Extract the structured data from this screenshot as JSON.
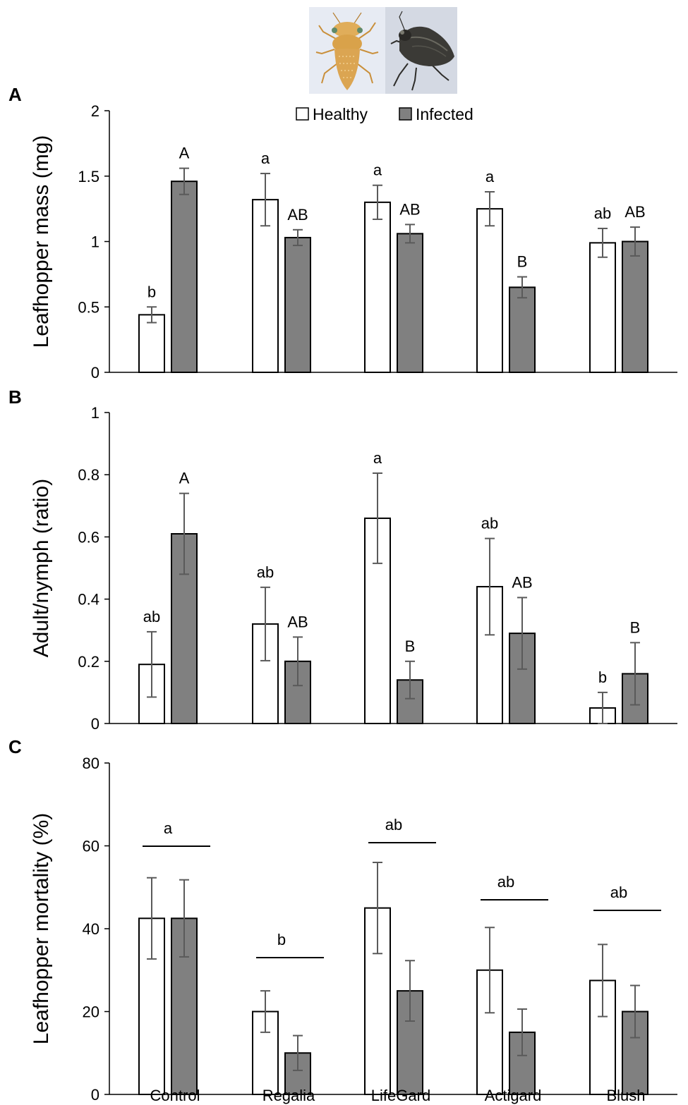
{
  "legend": {
    "healthy": "Healthy",
    "infected": "Infected"
  },
  "photos": {
    "left": "healthy-leafhopper-photo",
    "right": "infected-leafhopper-photo"
  },
  "colors": {
    "healthy_fill": "#ffffff",
    "infected_fill": "#808080",
    "bar_stroke": "#000000",
    "error_bar": "#5a5a5a",
    "axis": "#000000",
    "text": "#000000",
    "photo_bg_left": "#e7ebf3",
    "photo_bg_right": "#d4d9e3",
    "insect_healthy": "#d9a24a",
    "insect_infected": "#3b3a36"
  },
  "chart_data": [
    {
      "panel": "A",
      "type": "bar",
      "ylabel": "Leafhopper mass (mg)",
      "ylim": [
        0,
        2
      ],
      "yticks": [
        0,
        0.5,
        1,
        1.5,
        2
      ],
      "ytick_labels": [
        "0",
        "0.5",
        "1",
        "1.5",
        "2"
      ],
      "categories": [
        "Control",
        "Regalia",
        "LifeGard",
        "Actigard",
        "Blush"
      ],
      "series": [
        {
          "name": "Healthy",
          "values": [
            0.44,
            1.32,
            1.3,
            1.25,
            0.99
          ],
          "errors": [
            0.06,
            0.2,
            0.13,
            0.13,
            0.11
          ],
          "letters": [
            "b",
            "a",
            "a",
            "a",
            "ab"
          ]
        },
        {
          "name": "Infected",
          "values": [
            1.46,
            1.03,
            1.06,
            0.65,
            1.0
          ],
          "errors": [
            0.1,
            0.06,
            0.07,
            0.08,
            0.11
          ],
          "letters": [
            "A",
            "AB",
            "AB",
            "B",
            "AB"
          ]
        }
      ]
    },
    {
      "panel": "B",
      "type": "bar",
      "ylabel": "Adult/nymph (ratio)",
      "ylim": [
        0,
        1
      ],
      "yticks": [
        0,
        0.2,
        0.4,
        0.6,
        0.8,
        1
      ],
      "ytick_labels": [
        "0",
        "0.2",
        "0.4",
        "0.6",
        "0.8",
        "1"
      ],
      "categories": [
        "Control",
        "Regalia",
        "LifeGard",
        "Actigard",
        "Blush"
      ],
      "series": [
        {
          "name": "Healthy",
          "values": [
            0.19,
            0.32,
            0.66,
            0.44,
            0.05
          ],
          "errors": [
            0.105,
            0.118,
            0.145,
            0.155,
            0.05
          ],
          "letters": [
            "ab",
            "ab",
            "a",
            "ab",
            "b"
          ]
        },
        {
          "name": "Infected",
          "values": [
            0.61,
            0.2,
            0.14,
            0.29,
            0.16
          ],
          "errors": [
            0.13,
            0.078,
            0.06,
            0.115,
            0.1
          ],
          "letters": [
            "A",
            "AB",
            "B",
            "AB",
            "B"
          ]
        }
      ]
    },
    {
      "panel": "C",
      "type": "bar",
      "ylabel": "Leafhopper mortality (%)",
      "ylim": [
        0,
        80
      ],
      "yticks": [
        0,
        20,
        40,
        60,
        80
      ],
      "ytick_labels": [
        "0",
        "20",
        "40",
        "60",
        "80"
      ],
      "categories": [
        "Control",
        "Regalia",
        "LifeGard",
        "Actigard",
        "Blush"
      ],
      "series": [
        {
          "name": "Healthy",
          "values": [
            42.5,
            20,
            45,
            30,
            27.5
          ],
          "errors": [
            9.8,
            5,
            11,
            10.3,
            8.7
          ]
        },
        {
          "name": "Infected",
          "values": [
            42.5,
            10,
            25,
            15,
            20
          ],
          "errors": [
            9.3,
            4.2,
            7.3,
            5.6,
            6.3
          ]
        }
      ],
      "group_letters": [
        "a",
        "b",
        "ab",
        "ab",
        "ab"
      ],
      "xtick_labels": [
        "Control",
        "Regalia",
        "LifeGard",
        "Actigard",
        "Blush"
      ]
    }
  ]
}
